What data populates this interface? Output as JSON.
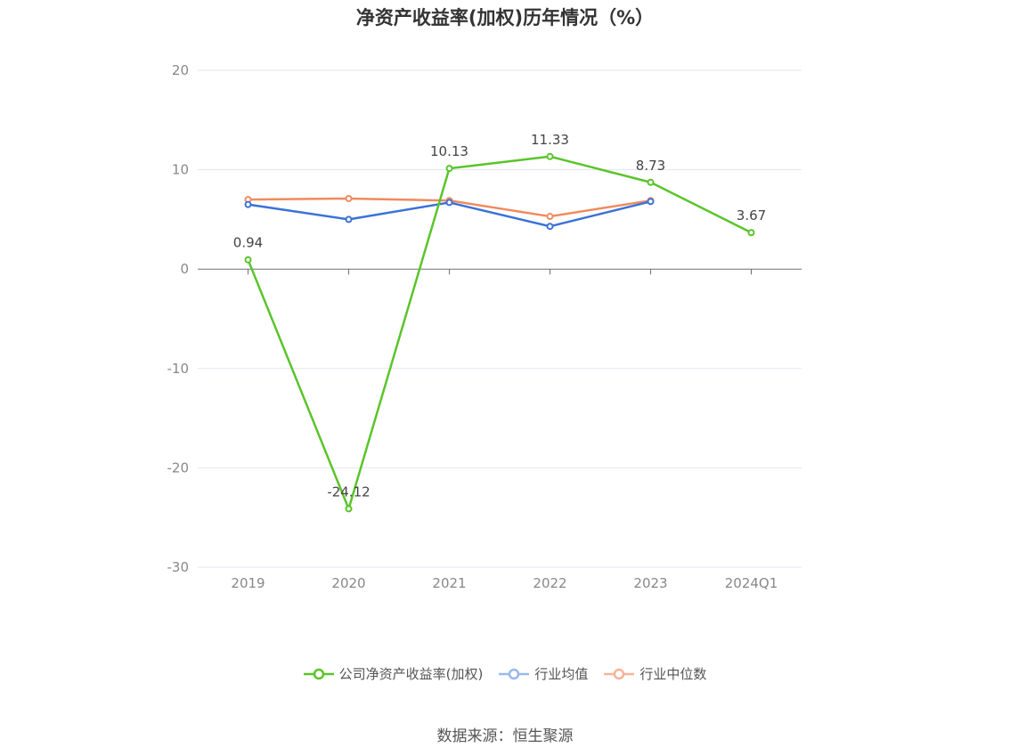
{
  "title": "净资产收益率(加权)历年情况（%）",
  "source": "数据来源：恒生聚源",
  "chart_data": {
    "type": "line",
    "categories": [
      "2019",
      "2020",
      "2021",
      "2022",
      "2023",
      "2024Q1"
    ],
    "ylim": [
      -30,
      20
    ],
    "yticks": [
      20,
      10,
      0,
      -10,
      -20,
      -30
    ],
    "grid": true,
    "legend_position": "bottom",
    "series": [
      {
        "name": "公司净资产收益率(加权)",
        "color": "#5ac42a",
        "values": [
          0.94,
          -24.12,
          10.13,
          11.33,
          8.73,
          3.67
        ],
        "labels": true
      },
      {
        "name": "行业均值",
        "color": "#3a72d8",
        "values": [
          6.5,
          5.0,
          6.7,
          4.3,
          6.8,
          null
        ],
        "labels": false
      },
      {
        "name": "行业中位数",
        "color": "#f08a5d",
        "values": [
          7.0,
          7.1,
          6.9,
          5.3,
          6.9,
          null
        ],
        "labels": false
      }
    ]
  }
}
